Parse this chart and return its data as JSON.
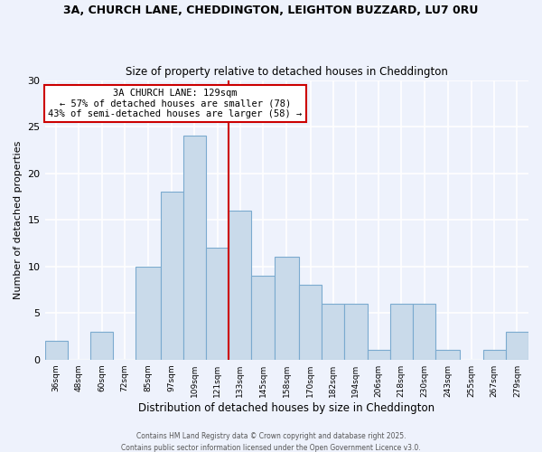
{
  "title": "3A, CHURCH LANE, CHEDDINGTON, LEIGHTON BUZZARD, LU7 0RU",
  "subtitle": "Size of property relative to detached houses in Cheddington",
  "xlabel": "Distribution of detached houses by size in Cheddington",
  "ylabel": "Number of detached properties",
  "categories": [
    "36sqm",
    "48sqm",
    "60sqm",
    "72sqm",
    "85sqm",
    "97sqm",
    "109sqm",
    "121sqm",
    "133sqm",
    "145sqm",
    "158sqm",
    "170sqm",
    "182sqm",
    "194sqm",
    "206sqm",
    "218sqm",
    "230sqm",
    "243sqm",
    "255sqm",
    "267sqm",
    "279sqm"
  ],
  "bar_heights": [
    2,
    0,
    3,
    0,
    10,
    18,
    24,
    12,
    16,
    9,
    11,
    8,
    6,
    6,
    1,
    6,
    6,
    1,
    0,
    1,
    3
  ],
  "bar_color": "#c9daea",
  "bar_edgecolor": "#7baacf",
  "background_color": "#eef2fc",
  "grid_color": "#ffffff",
  "vline_color": "#cc0000",
  "annotation_title": "3A CHURCH LANE: 129sqm",
  "annotation_line1": "← 57% of detached houses are smaller (78)",
  "annotation_line2": "43% of semi-detached houses are larger (58) →",
  "annotation_box_edgecolor": "#cc0000",
  "ylim": [
    0,
    30
  ],
  "yticks": [
    0,
    5,
    10,
    15,
    20,
    25,
    30
  ],
  "footer1": "Contains HM Land Registry data © Crown copyright and database right 2025.",
  "footer2": "Contains public sector information licensed under the Open Government Licence v3.0.",
  "bin_edges": [
    30,
    42,
    54,
    66,
    78,
    91,
    103,
    115,
    127,
    139,
    151,
    164,
    176,
    188,
    200,
    212,
    224,
    236,
    249,
    261,
    273,
    285
  ],
  "vline_pos": 127
}
